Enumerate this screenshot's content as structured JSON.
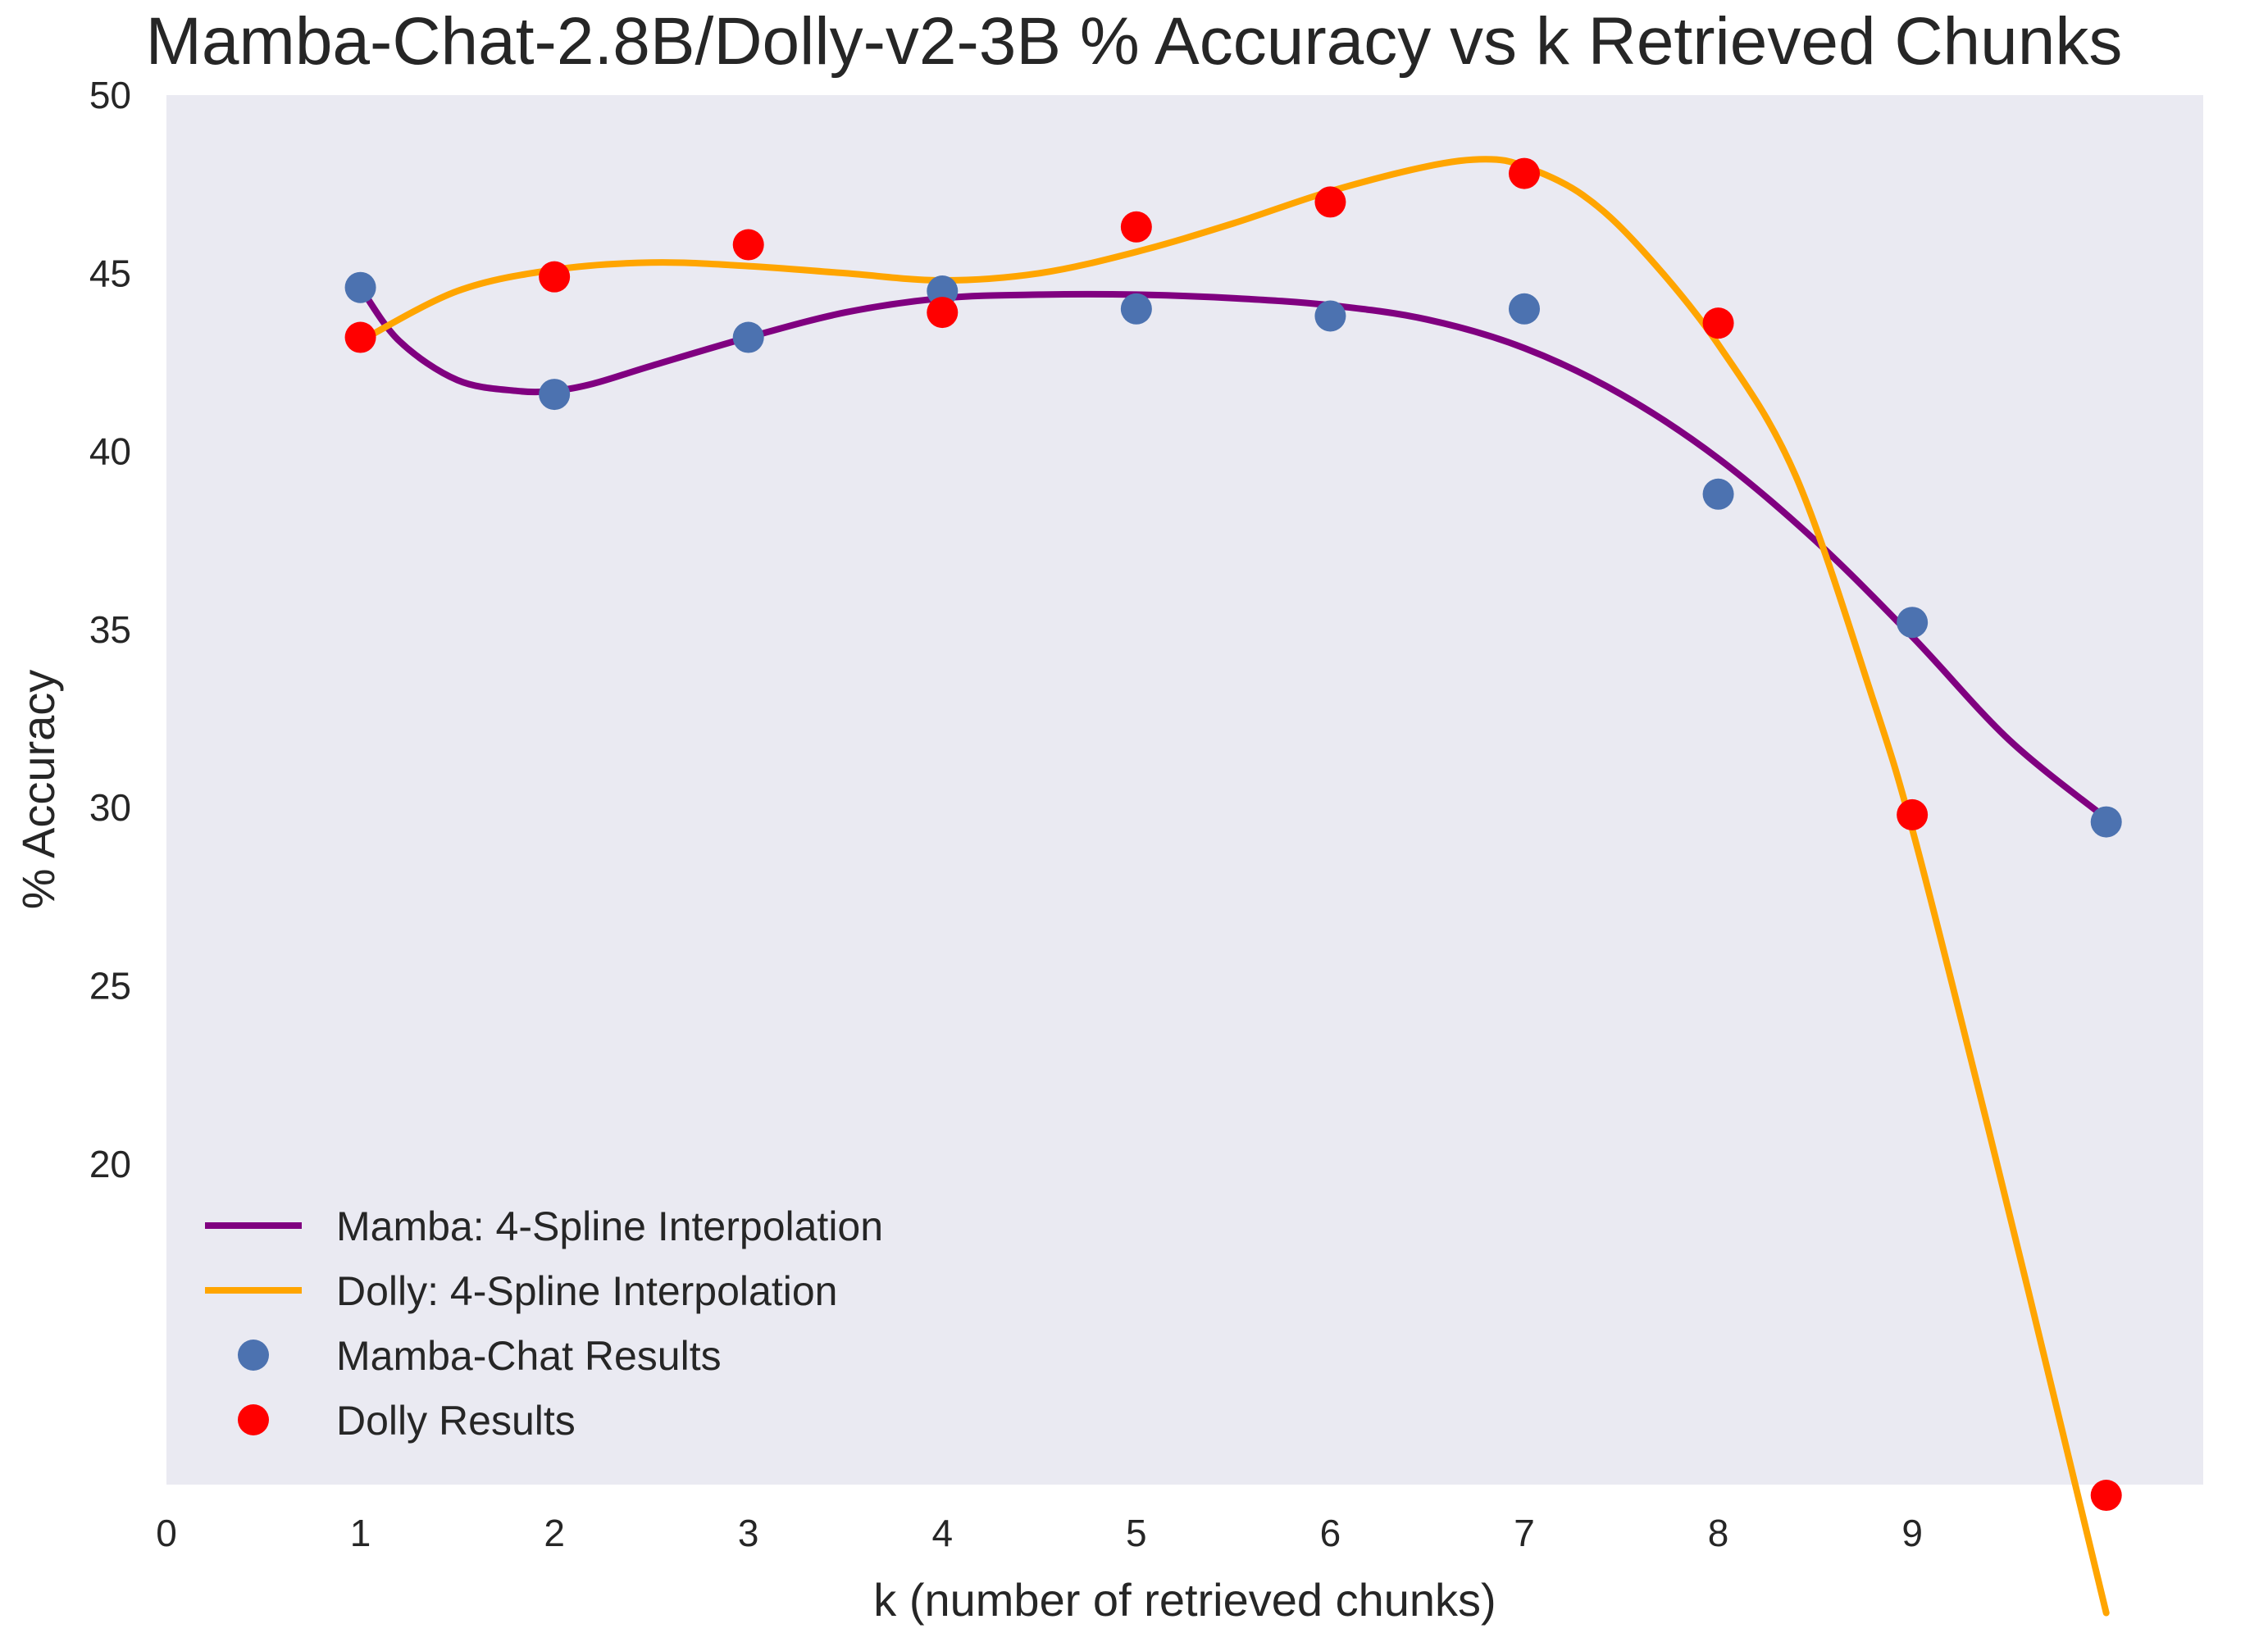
{
  "chart_data": {
    "type": "line",
    "title": "Mamba-Chat-2.8B/Dolly-v2-3B % Accuracy vs k Retrieved Chunks",
    "xlabel": "k (number of retrieved chunks)",
    "ylabel": "% Accuracy",
    "xlim": [
      0,
      10.5
    ],
    "ylim": [
      11,
      50
    ],
    "xticks": [
      0,
      1,
      2,
      3,
      4,
      5,
      6,
      7,
      8,
      9
    ],
    "xtick_labels": [
      "0",
      "1",
      "2",
      "3",
      "4",
      "5",
      "6",
      "7",
      "8",
      "9"
    ],
    "yticks": [
      20,
      25,
      30,
      35,
      40,
      45,
      50
    ],
    "ytick_labels": [
      "20",
      "25",
      "30",
      "35",
      "40",
      "45",
      "50"
    ],
    "grid": false,
    "legend_position": "bottom-left",
    "background": "#eaeaf2",
    "series": [
      {
        "name": "Mamba: 4-Spline Interpolation",
        "kind": "line",
        "color": "#800080",
        "x": [
          1.0,
          1.2,
          1.5,
          1.8,
          2.0,
          2.2,
          2.5,
          3.0,
          3.5,
          4.0,
          4.5,
          5.0,
          5.5,
          6.0,
          6.5,
          7.0,
          7.5,
          8.0,
          8.5,
          9.0,
          9.5,
          10.0
        ],
        "y": [
          44.6,
          43.1,
          42.0,
          41.7,
          41.7,
          41.9,
          42.4,
          43.2,
          43.9,
          44.3,
          44.4,
          44.4,
          44.3,
          44.1,
          43.7,
          42.9,
          41.6,
          39.8,
          37.5,
          34.8,
          31.9,
          29.7
        ]
      },
      {
        "name": "Dolly: 4-Spline Interpolation",
        "kind": "line",
        "color": "#ffa500",
        "x": [
          1.0,
          1.5,
          2.0,
          2.5,
          3.0,
          3.5,
          4.0,
          4.5,
          5.0,
          5.5,
          6.0,
          6.5,
          6.8,
          7.0,
          7.3,
          7.6,
          8.0,
          8.4,
          8.8,
          9.0,
          9.3,
          9.6,
          10.0
        ],
        "y": [
          43.1,
          44.5,
          45.1,
          45.3,
          45.2,
          45.0,
          44.8,
          45.0,
          45.6,
          46.4,
          47.3,
          48.0,
          48.2,
          48.0,
          47.2,
          45.7,
          43.0,
          39.3,
          33.0,
          29.4,
          23.0,
          16.4,
          7.4
        ]
      },
      {
        "name": "Mamba-Chat Results",
        "kind": "scatter",
        "color": "#4c72b0",
        "x": [
          1,
          2,
          3,
          4,
          5,
          6,
          7,
          8,
          9,
          10
        ],
        "y": [
          44.6,
          41.6,
          43.2,
          44.5,
          44.0,
          43.8,
          44.0,
          38.8,
          35.2,
          29.6
        ]
      },
      {
        "name": "Dolly Results",
        "kind": "scatter",
        "color": "#ff0000",
        "x": [
          1,
          2,
          3,
          4,
          5,
          6,
          7,
          8,
          9,
          10
        ],
        "y": [
          43.2,
          44.9,
          45.8,
          43.9,
          46.3,
          47.0,
          47.8,
          43.6,
          29.8,
          10.7
        ]
      }
    ]
  }
}
